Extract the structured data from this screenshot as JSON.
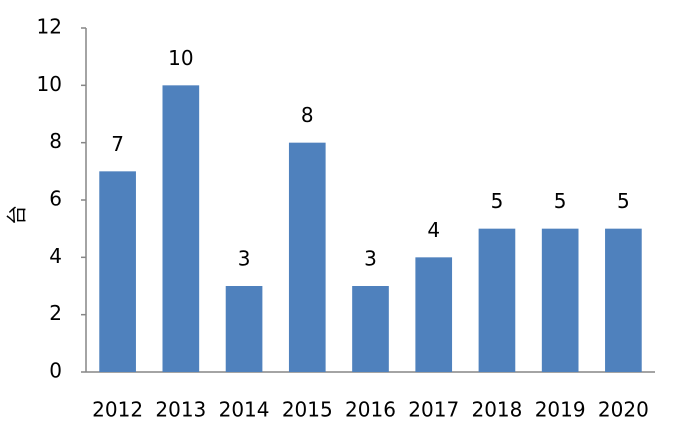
{
  "chart_data": {
    "type": "bar",
    "y_label": "台",
    "categories": [
      "2012",
      "2013",
      "2014",
      "2015",
      "2016",
      "2017",
      "2018",
      "2019",
      "2020"
    ],
    "values": [
      7,
      10,
      3,
      8,
      3,
      4,
      5,
      5,
      5
    ],
    "color": "#4f81bd",
    "ylim": [
      0,
      12
    ],
    "yticks": [
      0,
      2,
      4,
      6,
      8,
      10,
      12
    ],
    "grid": false,
    "data_labels": true
  }
}
